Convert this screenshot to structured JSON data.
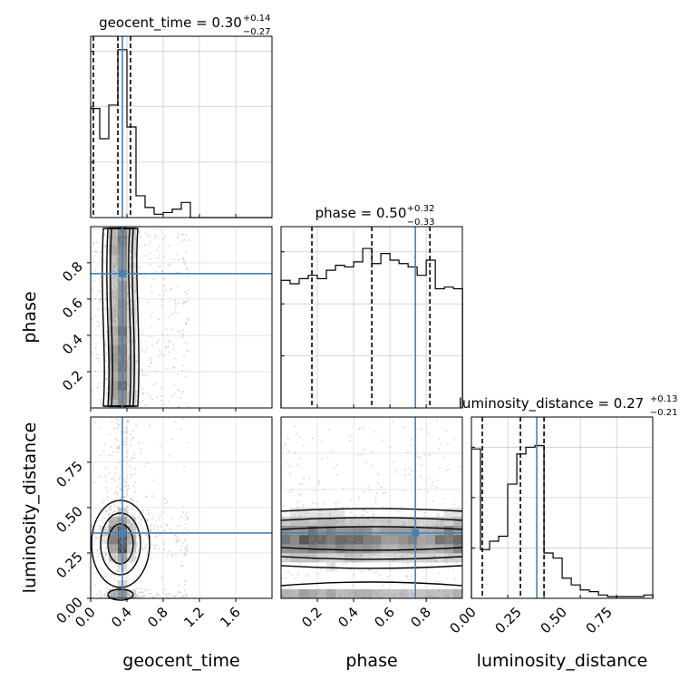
{
  "figure": {
    "parameters": [
      "geocent_time",
      "phase",
      "luminosity_distance"
    ]
  },
  "chart_data": {
    "type": "corner",
    "grid": true,
    "truth_color": "#4682b4",
    "diagonal": [
      {
        "param": "geocent_time",
        "title": {
          "main": "geocent_time = 0.30",
          "sup": "+0.14",
          "sub": "−0.27"
        },
        "xlim": [
          0,
          2.0
        ],
        "quantiles": [
          0.03,
          0.3,
          0.44
        ],
        "truth": 0.35,
        "hist_edges": [
          0.0,
          0.1,
          0.2,
          0.3,
          0.4,
          0.5,
          0.6,
          0.7,
          0.8,
          0.9,
          1.0,
          1.1,
          1.2,
          1.3,
          1.4,
          1.5,
          1.6,
          1.7,
          1.8,
          1.9,
          2.0
        ],
        "hist_counts": [
          0.65,
          0.47,
          0.67,
          1.0,
          0.54,
          0.13,
          0.06,
          0.02,
          0.03,
          0.05,
          0.09,
          0,
          0,
          0,
          0,
          0,
          0,
          0,
          0,
          0
        ],
        "yticks": [
          0.0,
          0.33,
          0.66,
          0.99
        ]
      },
      {
        "param": "phase",
        "title": {
          "main": "phase = 0.50",
          "sup": "+0.32",
          "sub": "−0.33"
        },
        "xlim": [
          0,
          0.999
        ],
        "quantiles": [
          0.17,
          0.5,
          0.82
        ],
        "truth": 0.74,
        "hist_edges": [
          0.0,
          0.05,
          0.1,
          0.15,
          0.2,
          0.25,
          0.3,
          0.35,
          0.4,
          0.45,
          0.5,
          0.55,
          0.6,
          0.65,
          0.7,
          0.75,
          0.8,
          0.85,
          0.9,
          0.95,
          1.0
        ],
        "hist_counts": [
          0.76,
          0.74,
          0.77,
          0.79,
          0.77,
          0.82,
          0.85,
          0.84,
          0.87,
          0.95,
          0.86,
          0.92,
          0.88,
          0.86,
          0.84,
          0.79,
          0.88,
          0.71,
          0.72,
          0.71
        ],
        "yticks": [
          0.0,
          0.31,
          0.62,
          0.93
        ]
      },
      {
        "param": "luminosity_distance",
        "title": {
          "main": "luminosity_distance = 0.27",
          "sup": "+0.13",
          "sub": "−0.21"
        },
        "xlim": [
          0,
          0.999
        ],
        "quantiles": [
          0.06,
          0.27,
          0.4
        ],
        "truth": 0.36,
        "hist_edges": [
          0.0,
          0.05,
          0.1,
          0.15,
          0.2,
          0.25,
          0.3,
          0.35,
          0.4,
          0.45,
          0.5,
          0.55,
          0.6,
          0.65,
          0.7,
          0.75,
          0.8,
          0.85,
          0.9,
          0.95,
          1.0
        ],
        "hist_counts": [
          0.89,
          0.29,
          0.34,
          0.37,
          0.68,
          0.86,
          0.9,
          0.91,
          0.27,
          0.24,
          0.12,
          0.08,
          0.05,
          0.04,
          0.02,
          0.01,
          0.01,
          0.01,
          0.01,
          0.02
        ],
        "yticks": [
          0.0,
          0.3,
          0.6,
          0.9
        ]
      }
    ],
    "panels": [
      {
        "x": "geocent_time",
        "y": "phase",
        "xlim": [
          0,
          2.0
        ],
        "ylim": [
          0,
          0.999
        ],
        "truth": [
          0.35,
          0.74
        ],
        "xticks": [
          0.0,
          0.4,
          0.8,
          1.2,
          1.6
        ],
        "yticks": [
          0.2,
          0.4,
          0.6,
          0.8
        ]
      },
      {
        "x": "geocent_time",
        "y": "luminosity_distance",
        "xlim": [
          0,
          2.0
        ],
        "ylim": [
          0,
          0.999
        ],
        "truth": [
          0.35,
          0.36
        ],
        "xticks": [
          0.0,
          0.4,
          0.8,
          1.2,
          1.6
        ],
        "yticks": [
          0.0,
          0.25,
          0.5,
          0.75
        ]
      },
      {
        "x": "phase",
        "y": "luminosity_distance",
        "xlim": [
          0,
          0.999
        ],
        "ylim": [
          0,
          0.999
        ],
        "truth": [
          0.74,
          0.36
        ],
        "xticks": [
          0.2,
          0.4,
          0.6,
          0.8
        ]
      }
    ],
    "tick_labels": {
      "geocent_time": [
        "0.0",
        "0.4",
        "0.8",
        "1.2",
        "1.6"
      ],
      "phase_x": [
        "0.2",
        "0.4",
        "0.6",
        "0.8"
      ],
      "phase_y": [
        "0.2",
        "0.4",
        "0.6",
        "0.8"
      ],
      "luminosity_distance_x": [
        "0.00",
        "0.25",
        "0.50",
        "0.75"
      ],
      "luminosity_distance_y": [
        "0.00",
        "0.25",
        "0.50",
        "0.75"
      ]
    },
    "axis_labels": {
      "geocent_time": "geocent_time",
      "phase": "phase",
      "luminosity_distance": "luminosity_distance"
    }
  }
}
